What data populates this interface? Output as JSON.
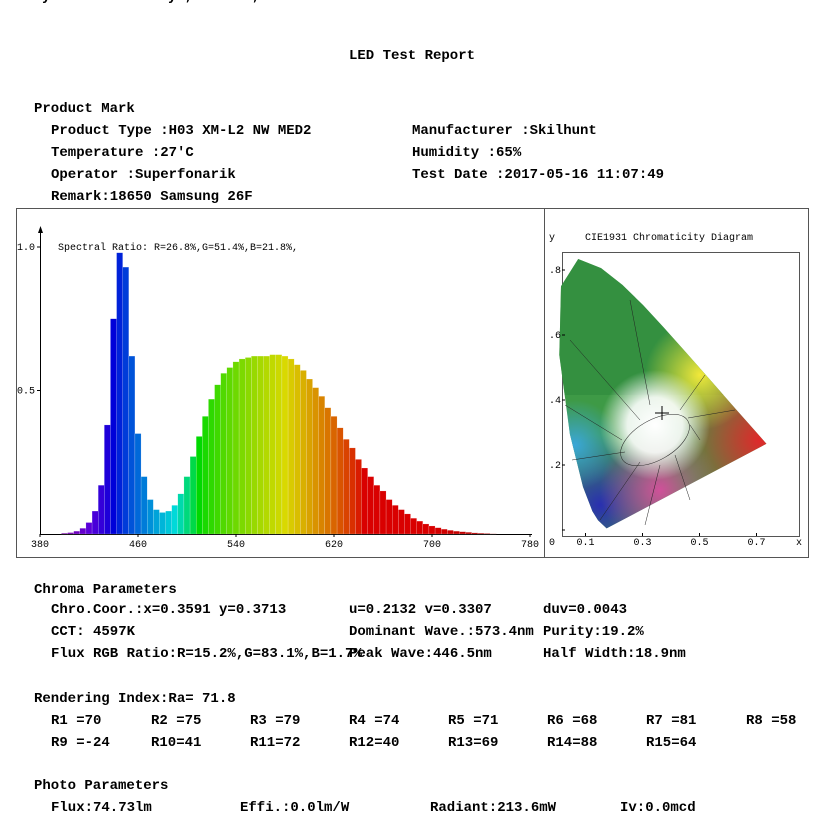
{
  "title": "LED Test Report",
  "product": {
    "heading": "Product Mark",
    "rows": [
      [
        "Product Type :H03 XM-L2 NW MED2",
        "Manufacturer :Skilhunt"
      ],
      [
        "Temperature :27'C",
        "Humidity :65%"
      ],
      [
        "Operator :Superfonarik",
        "Test Date :2017-05-16 11:07:49"
      ],
      [
        "Remark:18650 Samsung 26F"
      ]
    ]
  },
  "chart_data": [
    {
      "type": "spectrum",
      "annotation": "Spectral Ratio:  R=26.8%,G=51.4%,B=21.8%,",
      "x": [
        380,
        385,
        390,
        395,
        400,
        405,
        410,
        415,
        420,
        425,
        430,
        435,
        440,
        445,
        450,
        455,
        460,
        465,
        470,
        475,
        480,
        485,
        490,
        495,
        500,
        505,
        510,
        515,
        520,
        525,
        530,
        535,
        540,
        545,
        550,
        555,
        560,
        565,
        570,
        575,
        580,
        585,
        590,
        595,
        600,
        605,
        610,
        615,
        620,
        625,
        630,
        635,
        640,
        645,
        650,
        655,
        660,
        665,
        670,
        675,
        680,
        685,
        690,
        695,
        700,
        705,
        710,
        715,
        720,
        725,
        730,
        735,
        740,
        745,
        750,
        755,
        760,
        765,
        770,
        775,
        780
      ],
      "values": [
        0,
        0,
        0,
        0,
        0.003,
        0.005,
        0.01,
        0.02,
        0.04,
        0.08,
        0.17,
        0.38,
        0.75,
        0.98,
        0.93,
        0.62,
        0.35,
        0.2,
        0.12,
        0.085,
        0.075,
        0.08,
        0.1,
        0.14,
        0.2,
        0.27,
        0.34,
        0.41,
        0.47,
        0.52,
        0.56,
        0.58,
        0.6,
        0.61,
        0.615,
        0.62,
        0.62,
        0.62,
        0.625,
        0.625,
        0.62,
        0.61,
        0.59,
        0.57,
        0.54,
        0.51,
        0.48,
        0.44,
        0.41,
        0.37,
        0.33,
        0.3,
        0.26,
        0.23,
        0.2,
        0.17,
        0.15,
        0.12,
        0.1,
        0.085,
        0.07,
        0.055,
        0.045,
        0.035,
        0.028,
        0.022,
        0.017,
        0.013,
        0.01,
        0.008,
        0.006,
        0.004,
        0.003,
        0.002,
        0.001,
        0,
        0,
        0,
        0,
        0,
        0
      ],
      "xlim": [
        380,
        780
      ],
      "ylim": [
        0,
        1
      ],
      "xticks": [
        380,
        460,
        540,
        620,
        700,
        780
      ],
      "yticks": [
        {
          "value": 1,
          "label": "1.0"
        },
        0.5
      ]
    },
    {
      "type": "chromaticity",
      "title": "CIE1931 Chromaticity Diagram",
      "x_label": "x",
      "y_label": "y",
      "xlim": [
        0,
        0.85
      ],
      "ylim": [
        0,
        0.85
      ],
      "xticks": [
        {
          "value": 0.1,
          "label": "0.1"
        },
        {
          "value": 0.3,
          "label": "0.3"
        },
        {
          "value": 0.5,
          "label": "0.5"
        },
        {
          "value": 0.7,
          "label": "0.7"
        }
      ],
      "yticks": [
        0,
        {
          "value": 0.2,
          "label": ".2"
        },
        {
          "value": 0.4,
          "label": ".4"
        },
        {
          "value": 0.6,
          "label": ".6"
        },
        {
          "value": 0.8,
          "label": ".8"
        }
      ]
    }
  ],
  "chroma": {
    "heading": "Chroma Parameters",
    "rows": [
      [
        "Chro.Coor.:x=0.3591  y=0.3713",
        "u=0.2132  v=0.3307",
        "duv=0.0043"
      ],
      [
        "CCT: 4597K",
        "Dominant Wave.:573.4nm",
        "Purity:19.2%"
      ],
      [
        "Flux RGB Ratio:R=15.2%,G=83.1%,B=1.7%",
        "Peak Wave:446.5nm",
        "Half Width:18.9nm"
      ]
    ]
  },
  "rendering": {
    "heading": "Rendering Index:Ra= 71.8",
    "rows": [
      [
        "R1 =70",
        "R2 =75",
        "R3 =79",
        "R4 =74",
        "R5 =71",
        "R6 =68",
        "R7 =81",
        "R8 =58"
      ],
      [
        "R9 =-24",
        "R10=41",
        "R11=72",
        "R12=40",
        "R13=69",
        "R14=88",
        "R15=64"
      ]
    ]
  },
  "photo": {
    "heading": "Photo Parameters",
    "rows": [
      [
        "Flux:74.73lm",
        "Effi.:0.0lm/W",
        "Radiant:213.6mW",
        "Iv:0.0mcd"
      ]
    ]
  }
}
